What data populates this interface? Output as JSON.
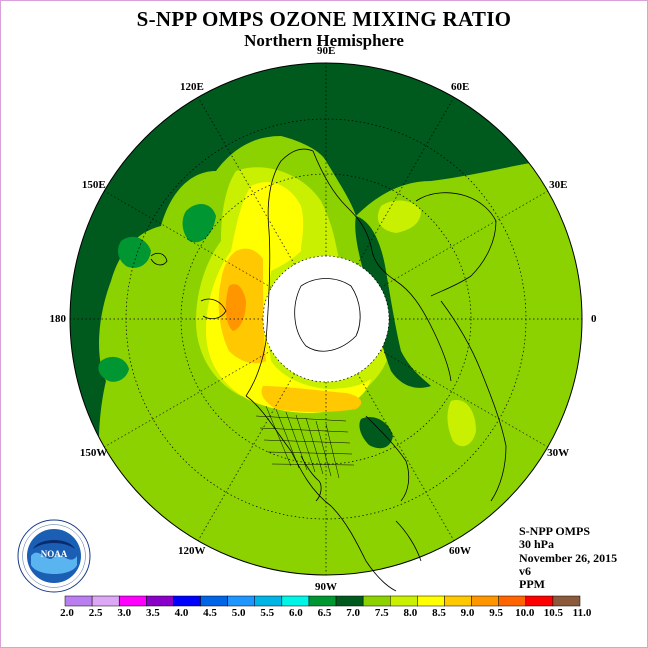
{
  "title": "S-NPP OMPS OZONE MIXING RATIO",
  "subtitle": "Northern Hemisphere",
  "longitude_labels": [
    {
      "label": "90E",
      "angle": 90
    },
    {
      "label": "60E",
      "angle": 60
    },
    {
      "label": "30E",
      "angle": 30
    },
    {
      "label": "0",
      "angle": 0
    },
    {
      "label": "30W",
      "angle": -30
    },
    {
      "label": "60W",
      "angle": -60
    },
    {
      "label": "90W",
      "angle": -90
    },
    {
      "label": "120W",
      "angle": -120
    },
    {
      "label": "150W",
      "angle": -150
    },
    {
      "label": "180",
      "angle": 180
    },
    {
      "label": "150E",
      "angle": 150
    },
    {
      "label": "120E",
      "angle": 120
    }
  ],
  "info": {
    "instrument": "S-NPP OMPS",
    "level": "30 hPa",
    "date": "November 26, 2015",
    "version": "v6",
    "units": "PPM"
  },
  "colorbar": {
    "ticks": [
      "2.0",
      "2.5",
      "3.0",
      "3.5",
      "4.0",
      "4.5",
      "5.0",
      "5.5",
      "6.0",
      "6.5",
      "7.0",
      "7.5",
      "8.0",
      "8.5",
      "9.0",
      "9.5",
      "10.0",
      "10.5",
      "11.0"
    ],
    "colors": [
      "#b97ff0",
      "#dca8f5",
      "#ff00ff",
      "#8a00c8",
      "#0000ff",
      "#0064e6",
      "#1e96ff",
      "#00b4e6",
      "#00f5e6",
      "#009632",
      "#005a1e",
      "#8cd200",
      "#c8f000",
      "#ffff00",
      "#ffc800",
      "#ff9600",
      "#ff6400",
      "#ff0000",
      "#8b5a3c"
    ]
  },
  "map": {
    "colors": {
      "background": "#005a1e",
      "mid_green": "#009632",
      "light_green": "#8cd200",
      "yellow_green": "#c8f000",
      "yellow": "#ffff00",
      "orange": "#ffc800",
      "dark_orange": "#ff9600",
      "pole_gap": "#ffffff"
    },
    "logo_text": "NOAA"
  }
}
